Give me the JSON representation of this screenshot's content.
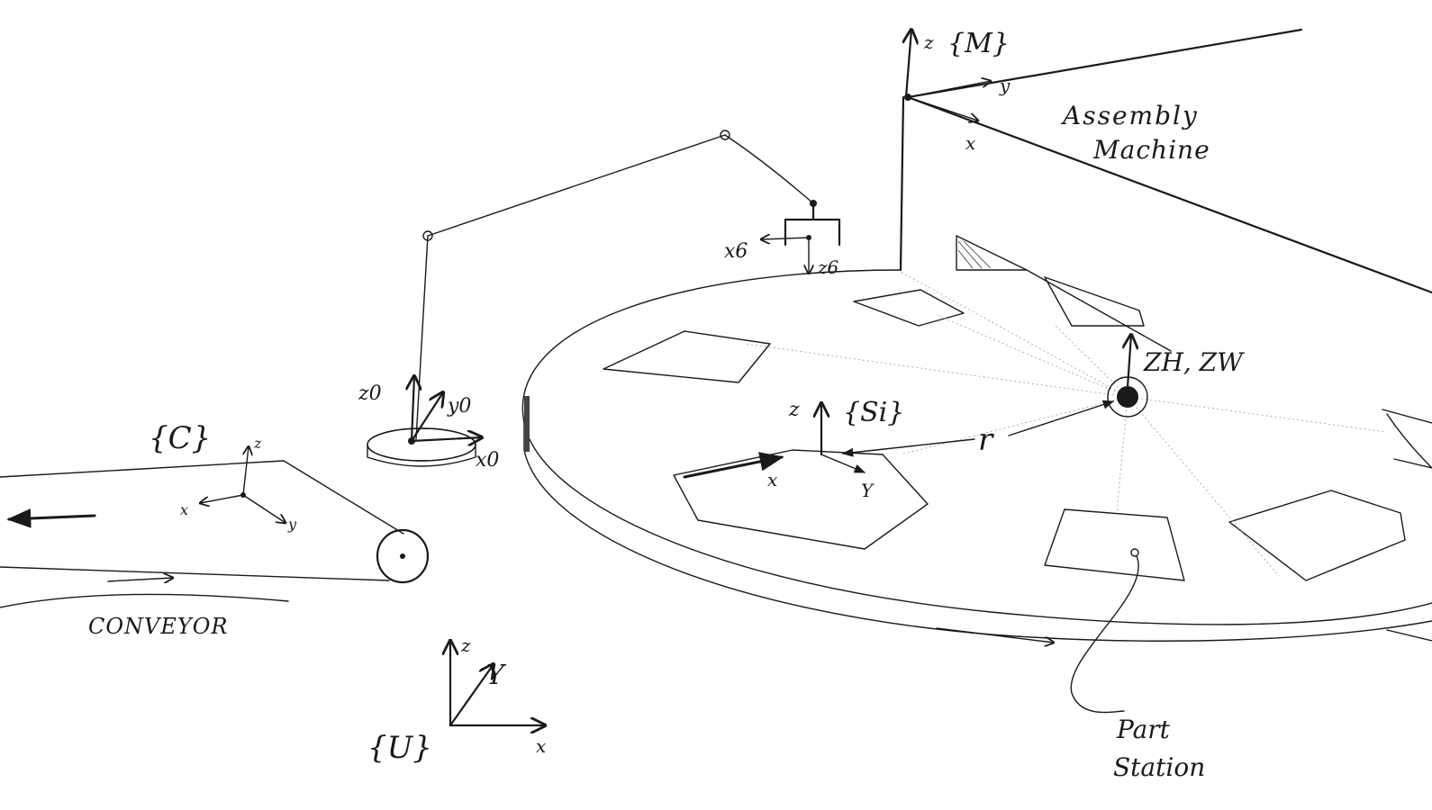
{
  "labels": {
    "machine_frame": "{M}",
    "machine_z": "z",
    "machine_y": "y",
    "machine_x": "x",
    "assembly_line1": "Assembly",
    "assembly_line2": "Machine",
    "x6": "x6",
    "z6": "z6",
    "z0": "z0",
    "y0": "y0",
    "x0": "x0",
    "conveyor_frame": "{C}",
    "conv_z": "z",
    "conv_x": "x",
    "conv_y": "y",
    "conveyor": "CONVEYOR",
    "station_frame": "{Si}",
    "station_z": "z",
    "station_x": "x",
    "station_y": "Y",
    "radius": "r",
    "zh_zw": "ZH, ZW",
    "universe_frame": "{U}",
    "u_z": "z",
    "u_y": "Y",
    "u_x": "x",
    "part_line1": "Part",
    "part_line2": "Station"
  }
}
